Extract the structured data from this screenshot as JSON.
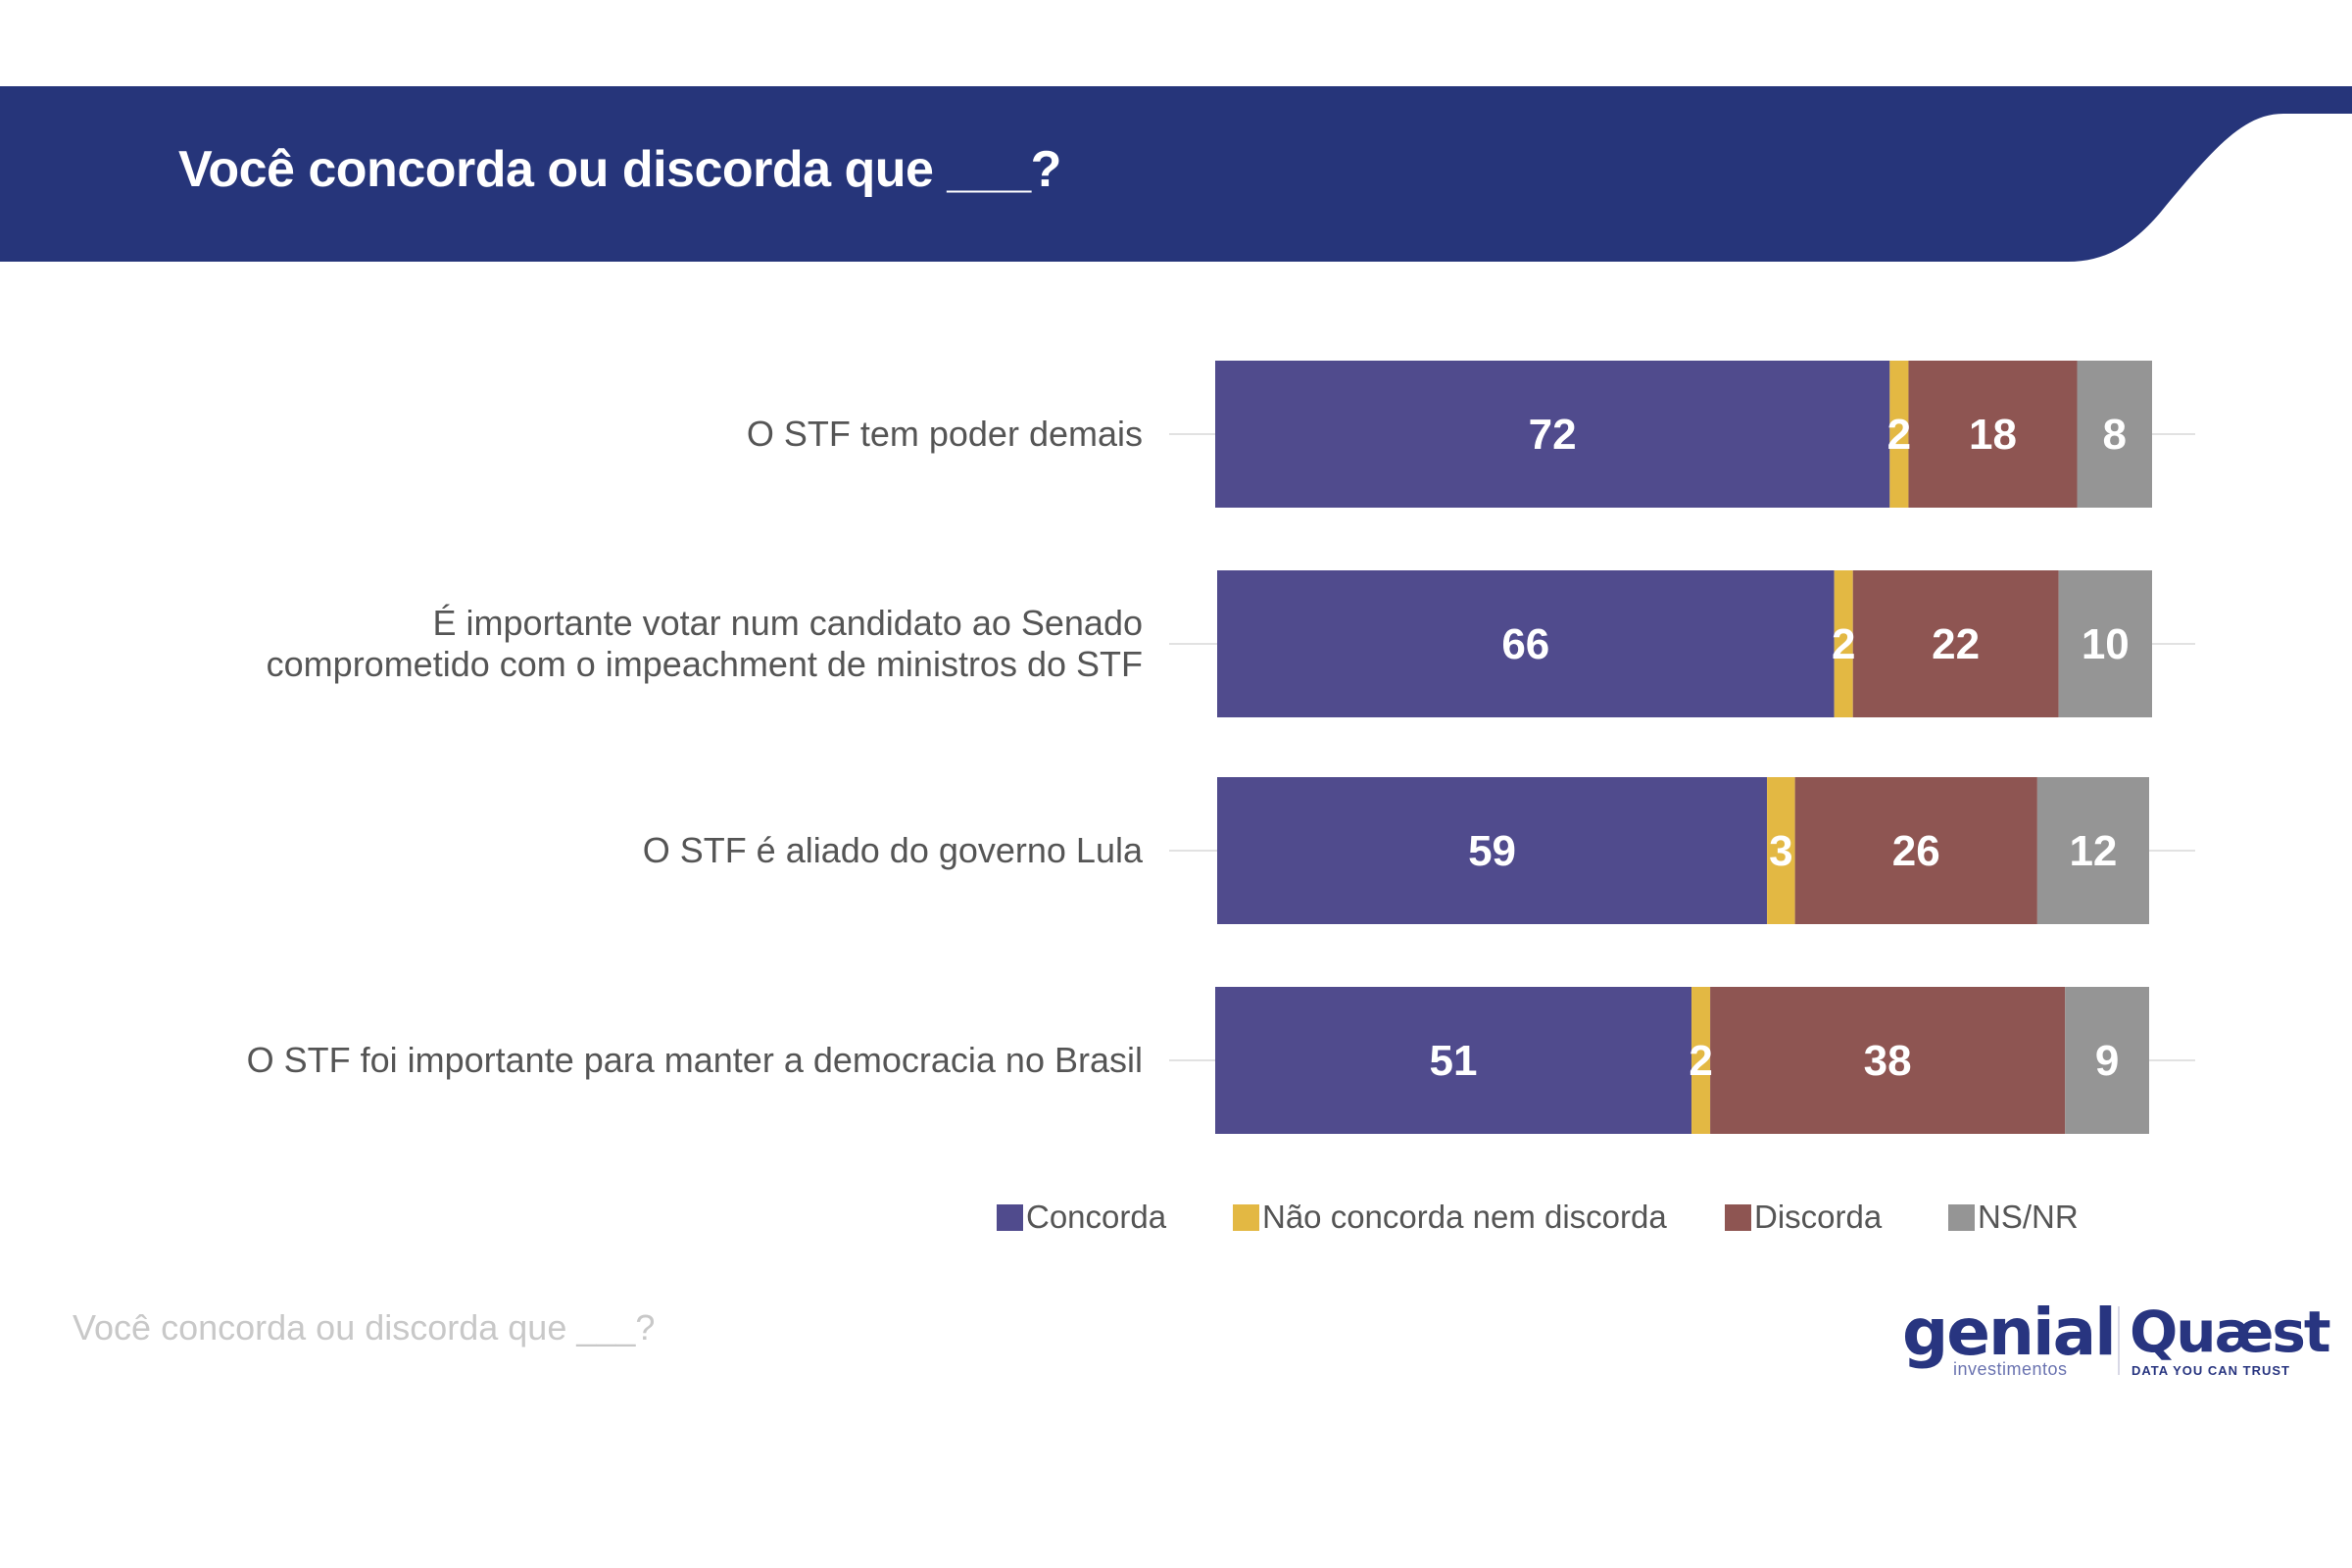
{
  "header": {
    "title": "Você concorda ou discorda que ___?",
    "background_color": "#26357A"
  },
  "footer": {
    "note": "Você concorda ou discorda que ___?",
    "logos": {
      "genial": {
        "name": "genial",
        "subtitle": "investimentos"
      },
      "quaest": {
        "name": "Quæst",
        "subtitle": "DATA YOU CAN TRUST"
      }
    }
  },
  "chart_data": {
    "type": "bar",
    "orientation": "horizontal",
    "stacked": true,
    "title": "Você concorda ou discorda que ___?",
    "xlabel": "",
    "ylabel": "",
    "xlim": [
      0,
      100
    ],
    "grid": false,
    "legend_position": "bottom",
    "categories": [
      "O STF tem poder demais",
      "É importante votar num candidato ao Senado comprometido com o impeachment de ministros do STF",
      "O STF é aliado do governo Lula",
      "O STF foi importante para manter a democracia no Brasil"
    ],
    "category_lines": [
      [
        "O STF tem poder demais"
      ],
      [
        "É importante votar num candidato ao Senado",
        "comprometido com o impeachment de ministros do STF"
      ],
      [
        "O STF é aliado do governo Lula"
      ],
      [
        "O STF foi importante para manter a democracia no Brasil"
      ]
    ],
    "series": [
      {
        "name": "Concorda",
        "color": "#504B8D",
        "values": [
          72,
          66,
          59,
          51
        ]
      },
      {
        "name": "Não concorda nem discorda",
        "color": "#E3B843",
        "values": [
          2,
          2,
          3,
          2
        ]
      },
      {
        "name": "Discorda",
        "color": "#8E5552",
        "values": [
          18,
          22,
          26,
          38
        ]
      },
      {
        "name": "NS/NR",
        "color": "#959595",
        "values": [
          8,
          10,
          12,
          9
        ]
      }
    ]
  }
}
